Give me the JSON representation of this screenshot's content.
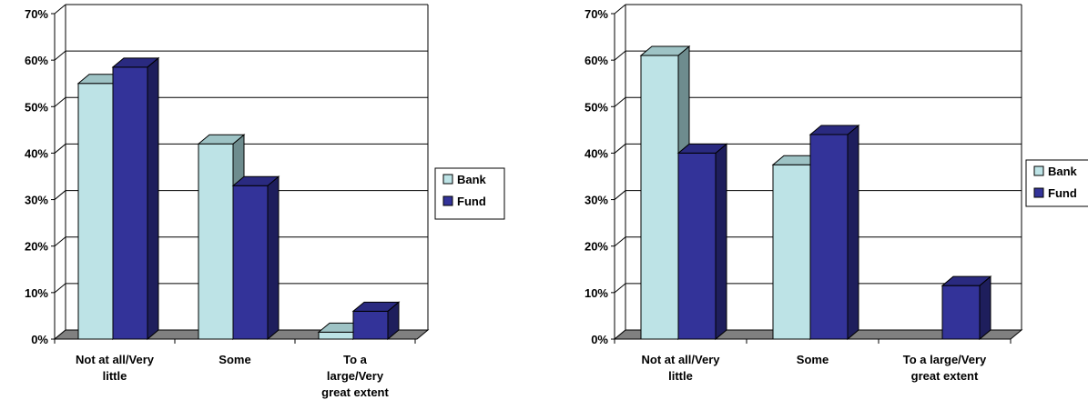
{
  "colors": {
    "bank": "#BDE3E6",
    "bank_side": "#6E8C8E",
    "bank_top": "#9EC3C5",
    "fund": "#333399",
    "fund_side": "#1E1E5C",
    "fund_top": "#2A2A80",
    "floor": "#808080",
    "grid": "#000000"
  },
  "chart_data": [
    {
      "type": "bar",
      "categories": [
        [
          "Not at all/Very",
          "little"
        ],
        [
          "Some"
        ],
        [
          "To a",
          "large/Very",
          "great extent"
        ]
      ],
      "series": [
        {
          "name": "Bank",
          "values": [
            0.55,
            0.42,
            0.015
          ]
        },
        {
          "name": "Fund",
          "values": [
            0.585,
            0.33,
            0.06
          ]
        }
      ],
      "ylim": [
        0,
        0.7
      ],
      "yticks": [
        "0%",
        "10%",
        "20%",
        "30%",
        "40%",
        "50%",
        "60%",
        "70%"
      ],
      "grid": true,
      "legend": "right"
    },
    {
      "type": "bar",
      "categories": [
        [
          "Not at all/Very",
          "little"
        ],
        [
          "Some"
        ],
        [
          "To a large/Very",
          "great extent"
        ]
      ],
      "series": [
        {
          "name": "Bank",
          "values": [
            0.61,
            0.375,
            0.0
          ]
        },
        {
          "name": "Fund",
          "values": [
            0.4,
            0.44,
            0.115
          ]
        }
      ],
      "ylim": [
        0,
        0.7
      ],
      "yticks": [
        "0%",
        "10%",
        "20%",
        "30%",
        "40%",
        "50%",
        "60%",
        "70%"
      ],
      "grid": true,
      "legend": "right"
    }
  ]
}
